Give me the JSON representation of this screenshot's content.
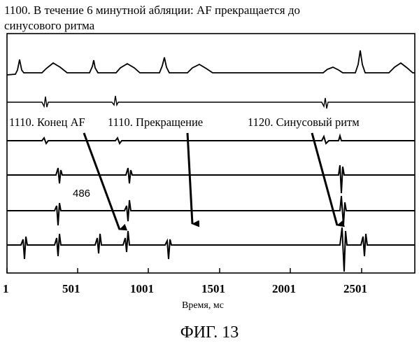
{
  "title": {
    "line1": "1100. В течение 6 минутной абляции: AF прекращается до",
    "line2": "синусового ритма"
  },
  "annotations": {
    "af_end": "1110. Конец AF",
    "termination": "1110. Прекращение",
    "sinus_rhythm": "1120. Синусовый ритм",
    "interval": "486"
  },
  "x_axis": {
    "label": "Время, мс",
    "ticks": [
      "1",
      "501",
      "1001",
      "1501",
      "2001",
      "2501"
    ],
    "range": [
      1,
      2800
    ]
  },
  "caption": "ФИГ. 13",
  "colors": {
    "trace": "#000000",
    "background": "#ffffff"
  }
}
